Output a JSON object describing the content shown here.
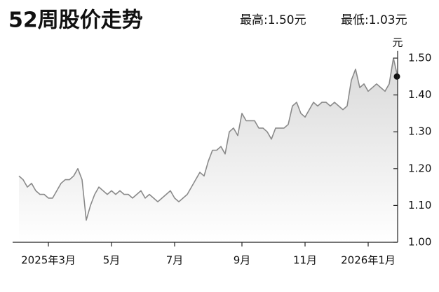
{
  "chart_data": {
    "type": "line",
    "title": "52周股价走势",
    "annotations": [
      "最高:1.50元",
      "最低:1.03元"
    ],
    "y_label": "元",
    "categories": [
      null,
      null,
      null,
      null,
      null,
      null,
      null,
      "2025年3月",
      null,
      null,
      null,
      null,
      null,
      null,
      null,
      null,
      null,
      null,
      null,
      null,
      null,
      null,
      "5月",
      null,
      null,
      null,
      null,
      null,
      null,
      null,
      null,
      null,
      null,
      null,
      null,
      null,
      null,
      "7月",
      null,
      null,
      null,
      null,
      null,
      null,
      null,
      null,
      null,
      null,
      null,
      null,
      null,
      null,
      null,
      "9月",
      null,
      null,
      null,
      null,
      null,
      null,
      null,
      null,
      null,
      null,
      null,
      null,
      null,
      null,
      "11月",
      null,
      null,
      null,
      null,
      null,
      null,
      null,
      null,
      null,
      null,
      null,
      null,
      null,
      null,
      "2026年1月",
      null,
      null,
      null,
      null,
      null,
      null,
      null
    ],
    "series": [
      {
        "color": "#8a8a8a",
        "values": [
          1.18,
          1.17,
          1.15,
          1.16,
          1.14,
          1.13,
          1.13,
          1.12,
          1.12,
          1.14,
          1.16,
          1.17,
          1.17,
          1.18,
          1.2,
          1.17,
          1.06,
          1.1,
          1.13,
          1.15,
          1.14,
          1.13,
          1.14,
          1.13,
          1.14,
          1.13,
          1.13,
          1.12,
          1.13,
          1.14,
          1.12,
          1.13,
          1.12,
          1.11,
          1.12,
          1.13,
          1.14,
          1.12,
          1.11,
          1.12,
          1.13,
          1.15,
          1.17,
          1.19,
          1.18,
          1.22,
          1.25,
          1.25,
          1.26,
          1.24,
          1.3,
          1.31,
          1.29,
          1.35,
          1.33,
          1.33,
          1.33,
          1.31,
          1.31,
          1.3,
          1.28,
          1.31,
          1.31,
          1.31,
          1.32,
          1.37,
          1.38,
          1.35,
          1.34,
          1.36,
          1.38,
          1.37,
          1.38,
          1.38,
          1.37,
          1.38,
          1.37,
          1.36,
          1.37,
          1.44,
          1.47,
          1.42,
          1.43,
          1.41,
          1.42,
          1.43,
          1.42,
          1.41,
          1.43,
          1.5,
          1.45
        ]
      }
    ],
    "ylim": [
      1.0,
      1.51
    ],
    "yticks": [
      {
        "value": 1.0,
        "label": "1.00"
      },
      {
        "value": 1.1,
        "label": "1.10"
      },
      {
        "value": 1.2,
        "label": "1.20"
      },
      {
        "value": 1.3,
        "label": "1.30"
      },
      {
        "value": 1.4,
        "label": "1.40"
      },
      {
        "value": 1.5,
        "label": "1.50"
      }
    ],
    "grid": false
  }
}
